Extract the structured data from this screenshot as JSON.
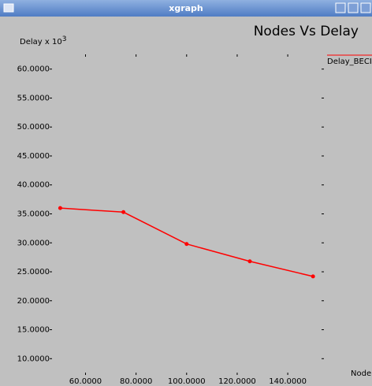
{
  "window": {
    "title": "xgraph"
  },
  "chart_data": {
    "type": "line",
    "title": "Nodes Vs Delay",
    "ylabel": "Delay x 10",
    "ylabel_exponent": "3",
    "xlabel": "Node",
    "x": [
      50,
      75,
      100,
      125,
      150
    ],
    "series": [
      {
        "name": "Delay_BECI",
        "color": "#ff0000",
        "values": [
          36.0,
          35.3,
          29.8,
          26.8,
          24.2
        ]
      }
    ],
    "xlim": [
      48,
      154
    ],
    "ylim": [
      8,
      62
    ],
    "xticks": [
      {
        "value": 60,
        "label": "60.0000"
      },
      {
        "value": 80,
        "label": "80.0000"
      },
      {
        "value": 100,
        "label": "100.0000"
      },
      {
        "value": 120,
        "label": "120.0000"
      },
      {
        "value": 140,
        "label": "140.0000"
      }
    ],
    "yticks": [
      {
        "value": 10,
        "label": "10.0000"
      },
      {
        "value": 15,
        "label": "15.0000"
      },
      {
        "value": 20,
        "label": "20.0000"
      },
      {
        "value": 25,
        "label": "25.0000"
      },
      {
        "value": 30,
        "label": "30.0000"
      },
      {
        "value": 35,
        "label": "35.0000"
      },
      {
        "value": 40,
        "label": "40.0000"
      },
      {
        "value": 45,
        "label": "45.0000"
      },
      {
        "value": 50,
        "label": "50.0000"
      },
      {
        "value": 55,
        "label": "55.0000"
      },
      {
        "value": 60,
        "label": "60.0000"
      }
    ]
  }
}
